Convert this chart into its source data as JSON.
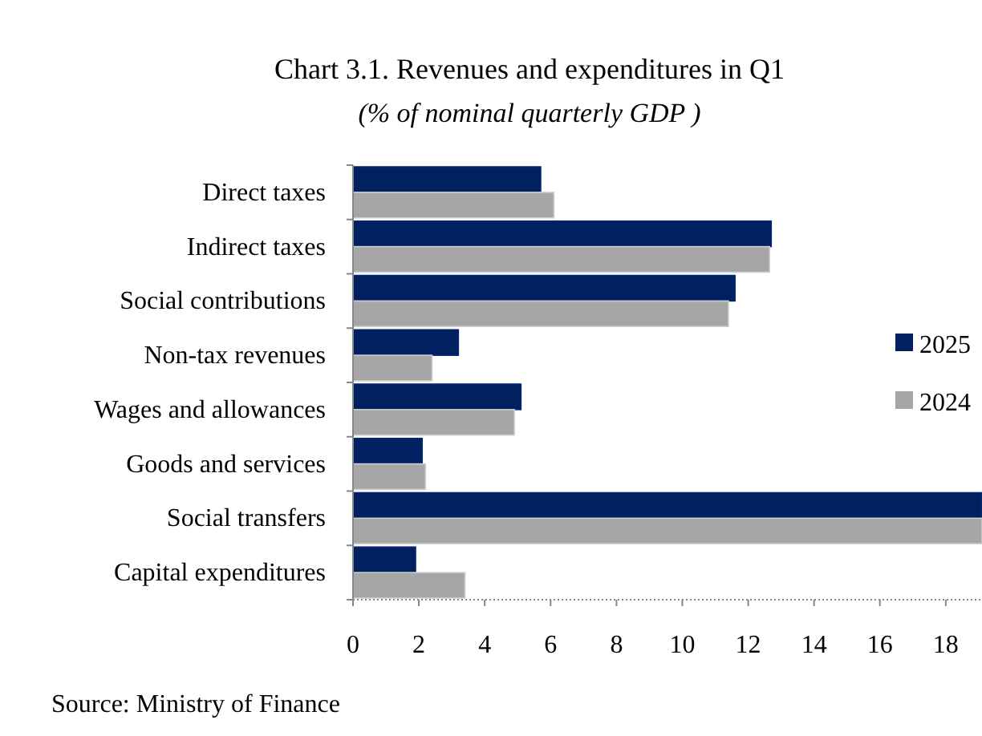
{
  "chart_data": {
    "type": "bar",
    "orientation": "horizontal",
    "title": "Chart 3.1.  Revenues and expenditures in Q1",
    "subtitle": "(% of nominal quarterly GDP )",
    "categories": [
      "Direct taxes",
      "Indirect taxes",
      "Social contributions",
      "Non-tax revenues",
      "Wages and allowances",
      "Goods and services",
      "Social transfers",
      "Capital expenditures"
    ],
    "series": [
      {
        "name": "2025",
        "color": "#002060",
        "values": [
          5.7,
          12.7,
          11.6,
          3.2,
          5.1,
          2.1,
          19.1,
          1.9
        ]
      },
      {
        "name": "2024",
        "color": "#a6a6a6",
        "values": [
          6.1,
          12.65,
          11.4,
          2.4,
          4.9,
          2.2,
          19.1,
          3.4
        ]
      }
    ],
    "xlim": [
      0,
      19.1
    ],
    "xticks": [
      0,
      2,
      4,
      6,
      8,
      10,
      12,
      14,
      16,
      18
    ],
    "grid": false,
    "legend": "right",
    "annotations": [
      "Source: Ministry of Finance"
    ]
  }
}
